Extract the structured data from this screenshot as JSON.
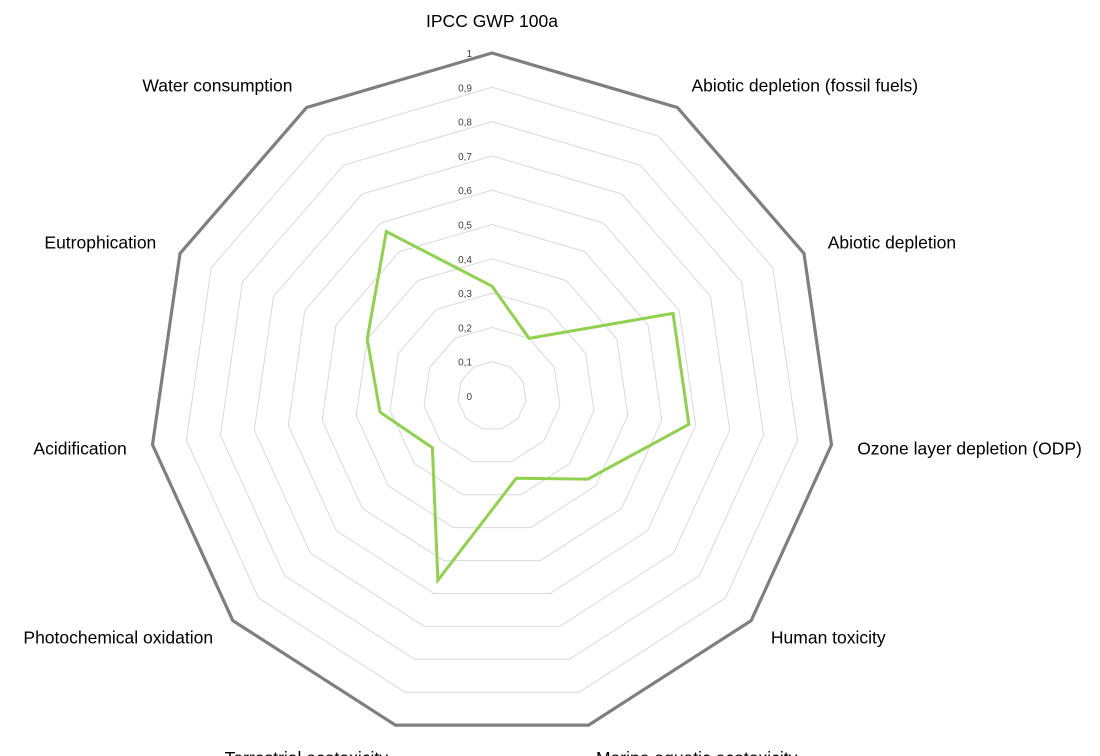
{
  "chart_data": {
    "type": "radar",
    "title": "",
    "categories": [
      "IPCC GWP 100a",
      "Abiotic depletion (fossil fuels)",
      "Abiotic depletion",
      "Ozone layer depletion (ODP)",
      "Human toxicity",
      "Marine aquatic ecotoxicity",
      "Terrestrial ecotoxicity",
      "Photochemical oxidation",
      "Acidification",
      "Eutrophication",
      "Water consumption"
    ],
    "tick_labels": [
      "0",
      "0,1",
      "0,2",
      "0,3",
      "0,4",
      "0,5",
      "0,6",
      "0,7",
      "0,8",
      "0,9",
      "1"
    ],
    "rlim": [
      0,
      1
    ],
    "series": [
      {
        "values": [
          0.32,
          0.2,
          0.58,
          0.58,
          0.37,
          0.25,
          0.56,
          0.23,
          0.33,
          0.4,
          0.57
        ],
        "color": "#92d050"
      }
    ],
    "outer_ring_color": "#7f7f7f",
    "grid": true,
    "legend": "none"
  }
}
